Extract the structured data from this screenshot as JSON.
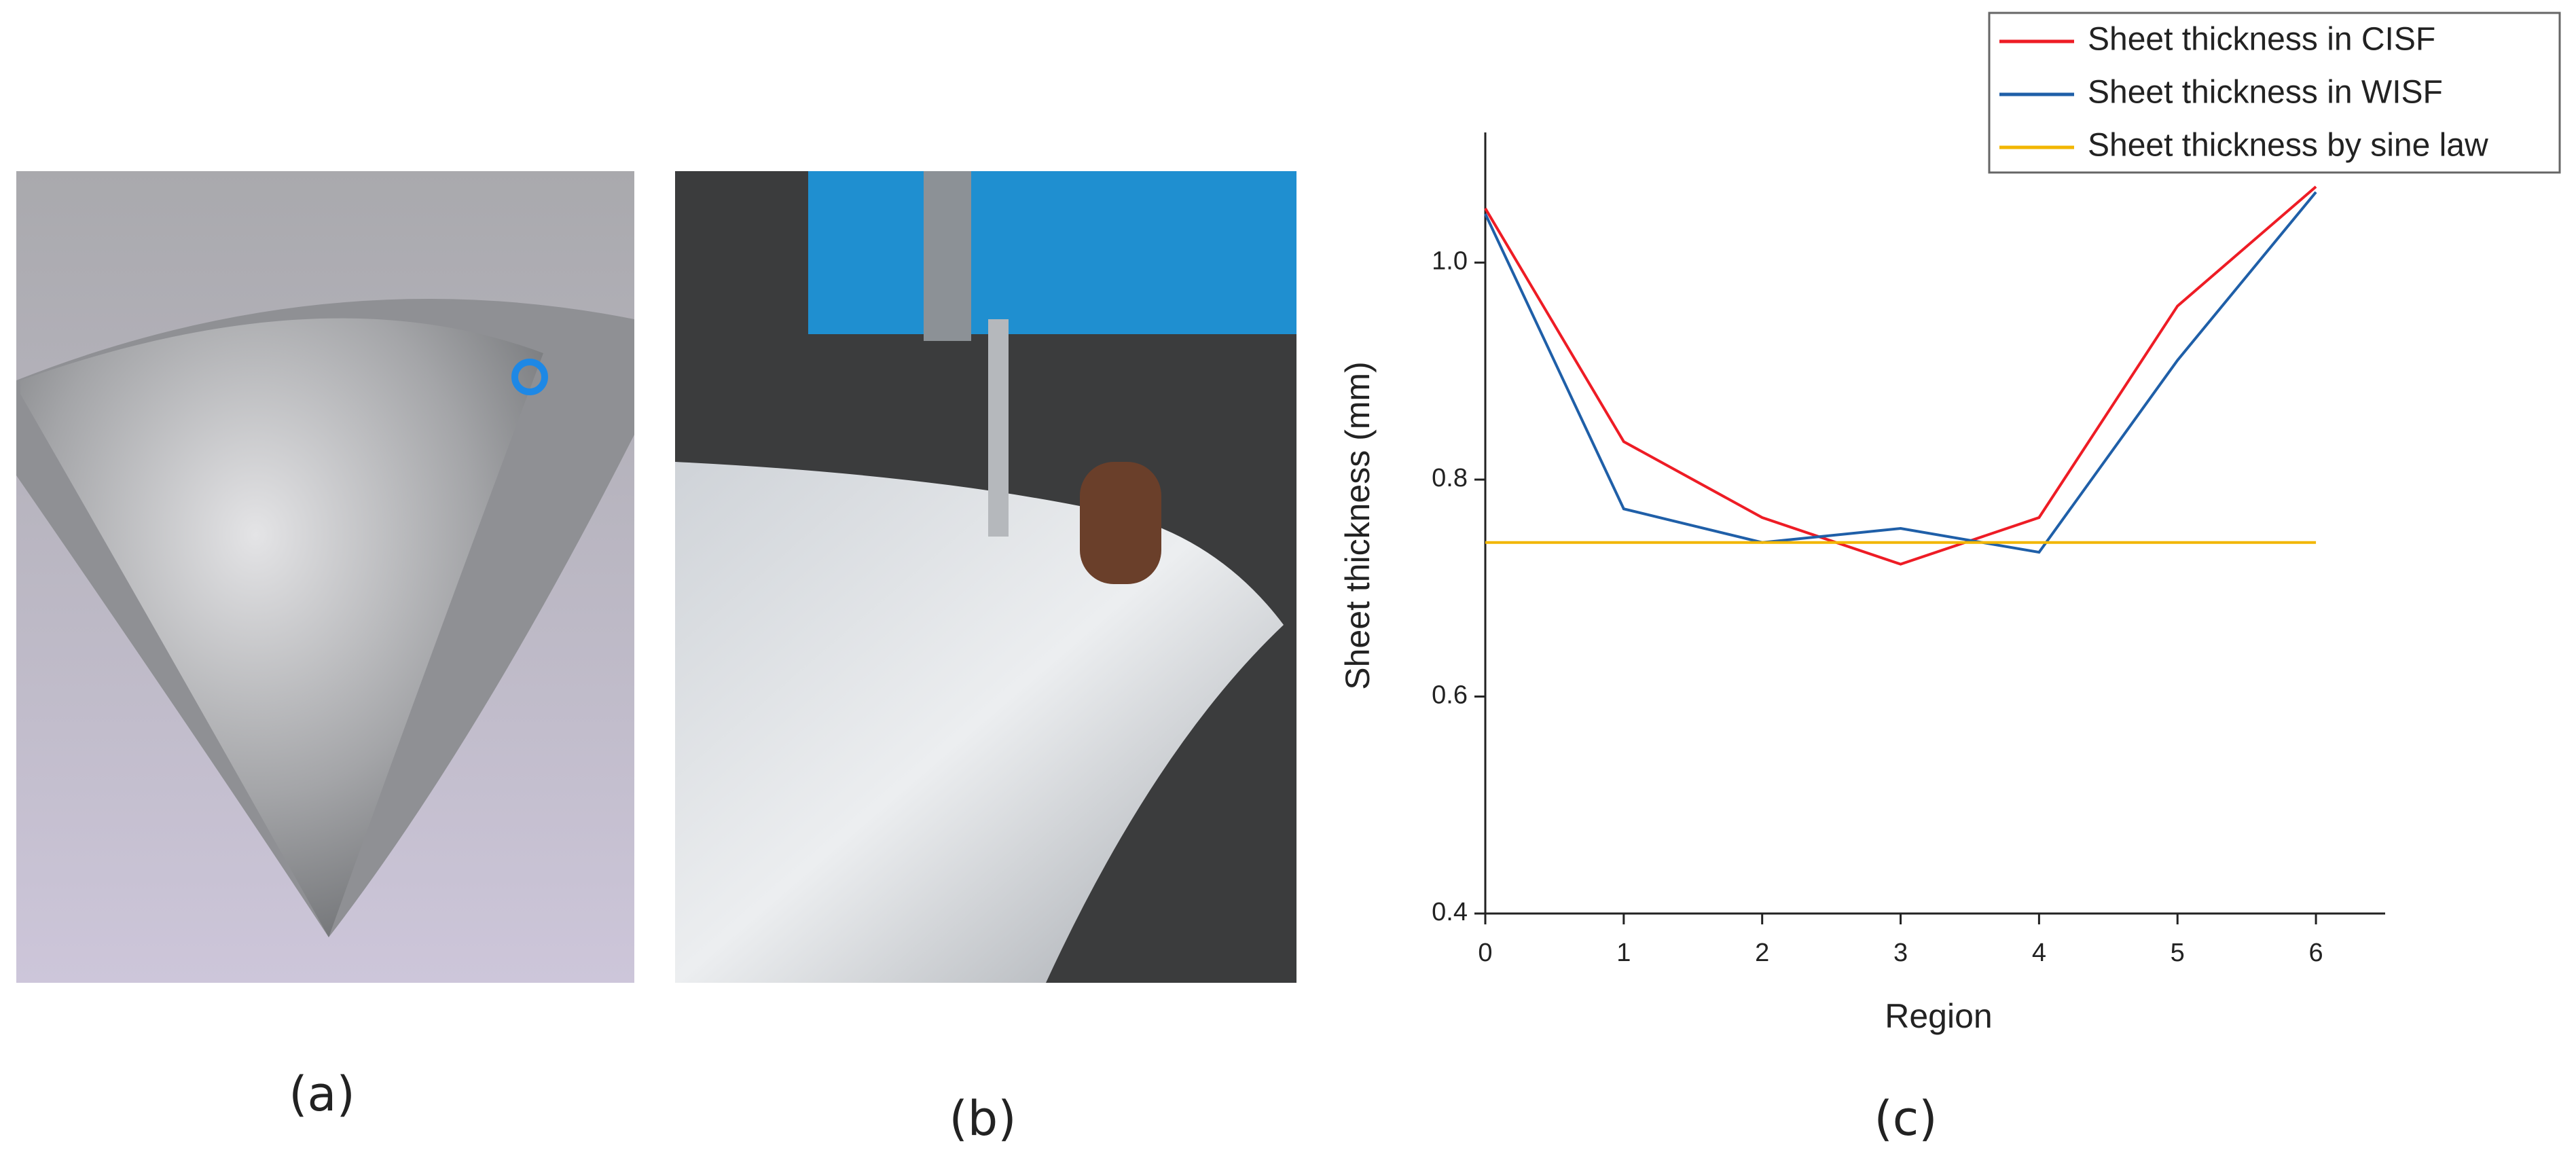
{
  "panel_labels": [
    "(a)",
    "(b)",
    "(c)"
  ],
  "chart_data": {
    "type": "line",
    "x_label": "Region",
    "y_label": "Sheet thickness (mm)",
    "x": [
      0,
      1,
      2,
      3,
      4,
      5,
      6
    ],
    "series": [
      {
        "name": "Sheet thickness in CISF",
        "color": "#ee1c25",
        "values": [
          1.05,
          0.835,
          0.765,
          0.722,
          0.765,
          0.96,
          1.07
        ]
      },
      {
        "name": "Sheet thickness in WISF",
        "color": "#1f5fa8",
        "values": [
          1.045,
          0.773,
          0.742,
          0.755,
          0.733,
          0.91,
          1.065
        ]
      },
      {
        "name": "Sheet thickness by sine law",
        "color": "#f2b600",
        "values": [
          0.742,
          0.742,
          0.742,
          0.742,
          0.742,
          0.742,
          0.742
        ]
      }
    ],
    "xlim": [
      0,
      6.5
    ],
    "ylim": [
      0.4,
      1.12
    ],
    "xticks": [
      0,
      1,
      2,
      3,
      4,
      5,
      6
    ],
    "yticks": [
      0.4,
      0.6,
      0.8,
      {
        "value": 1,
        "label": "1.0"
      }
    ],
    "legend": "top-right"
  }
}
